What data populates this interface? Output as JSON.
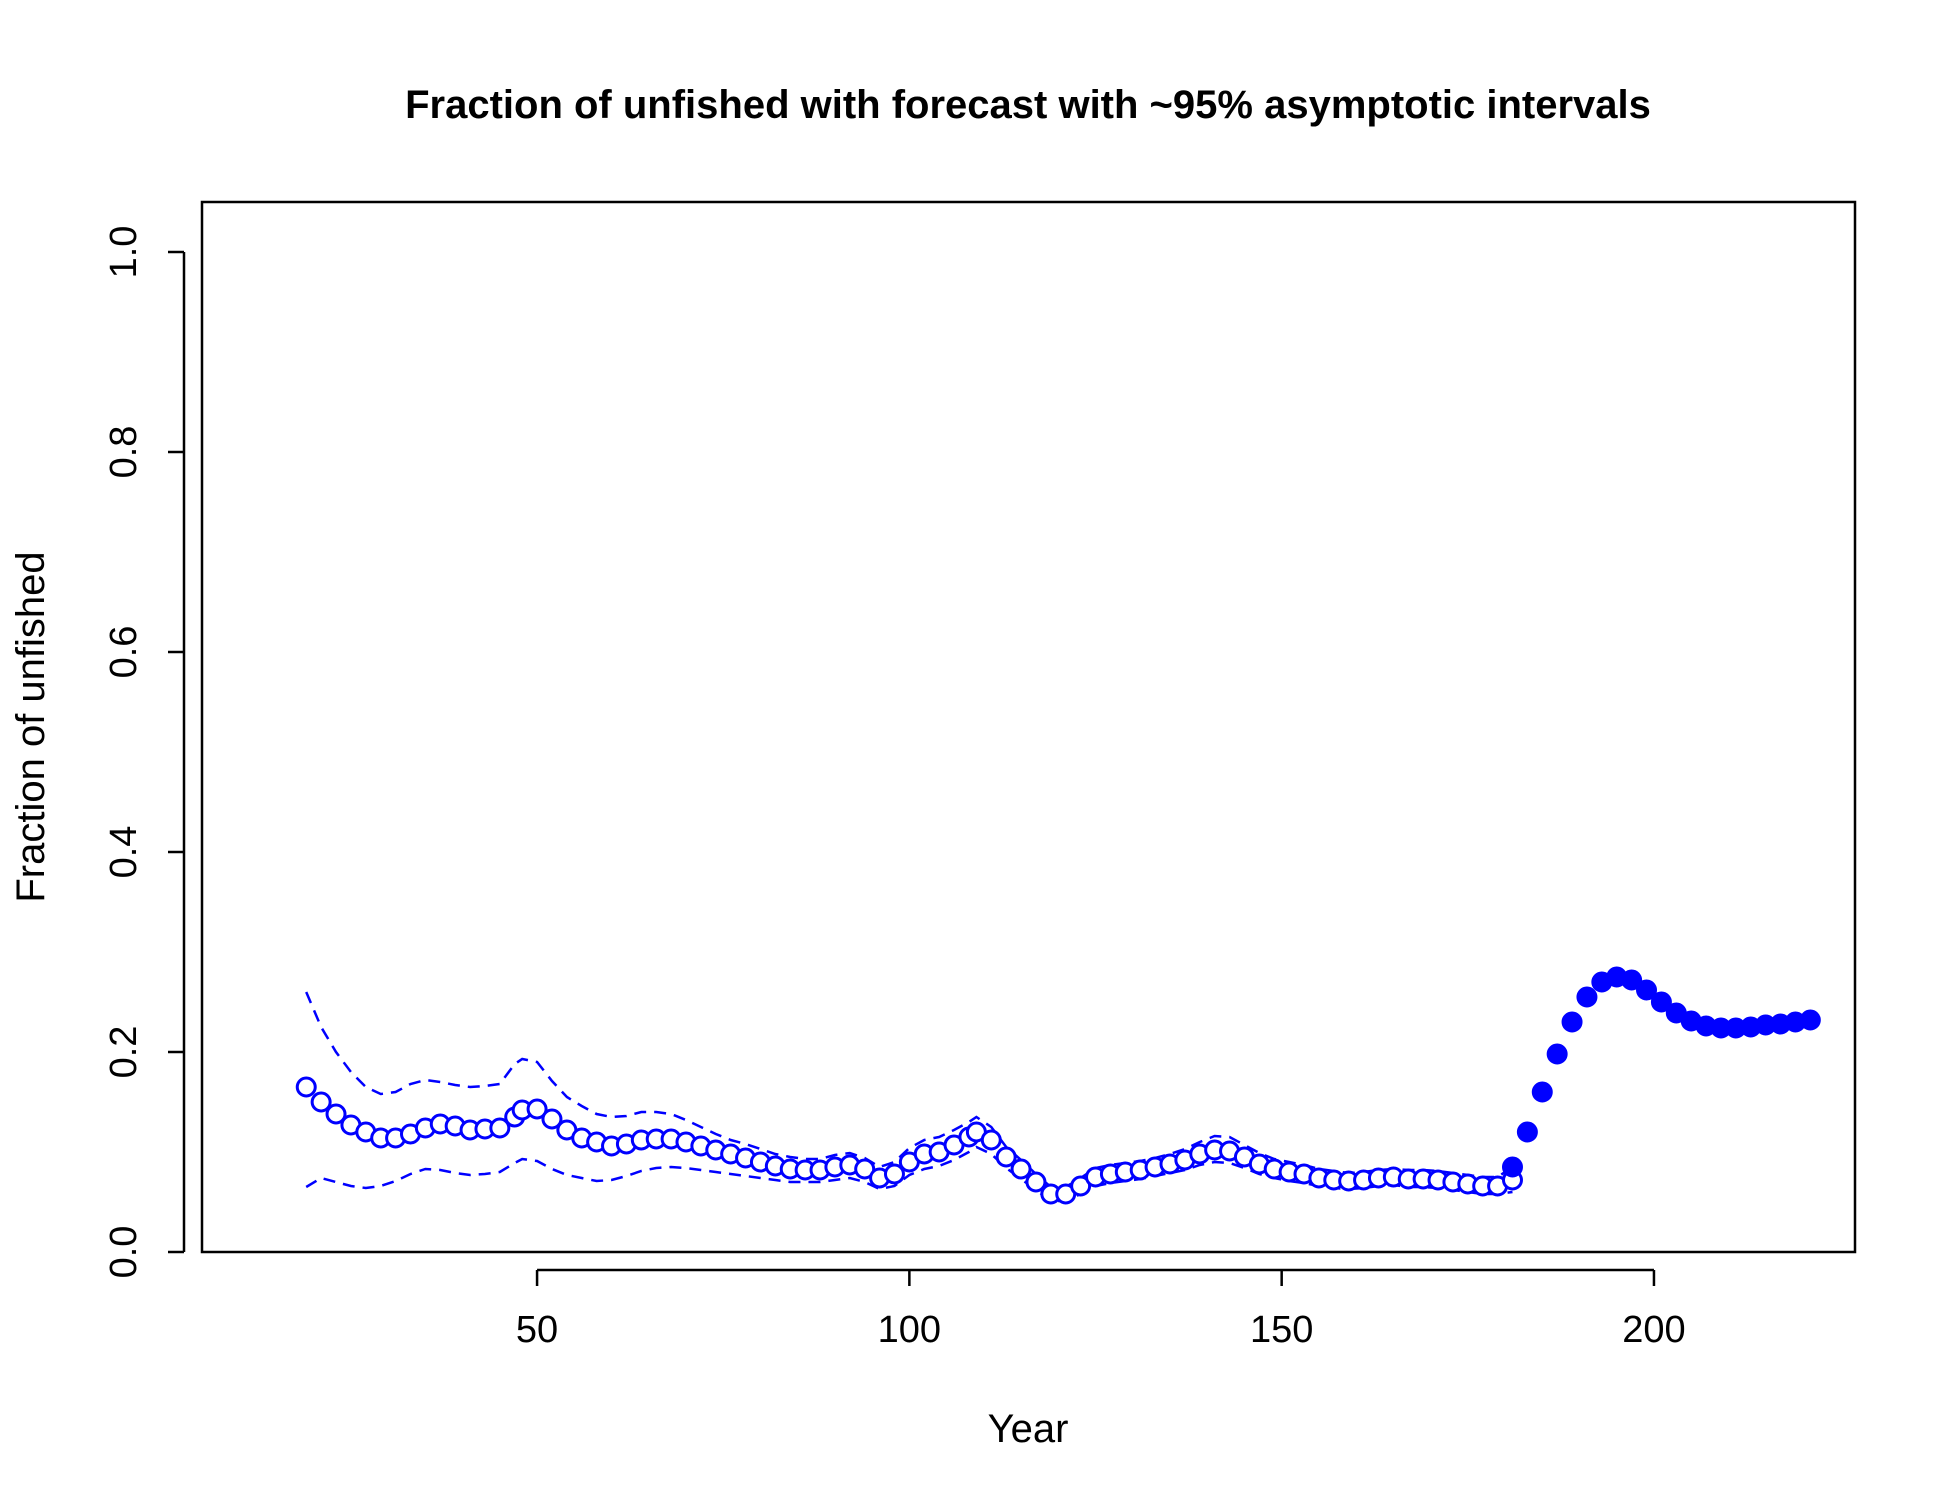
{
  "chart_data": {
    "type": "scatter",
    "title": "Fraction of unfished with forecast with ~95% asymptotic intervals",
    "xlabel": "Year",
    "ylabel": "Fraction of unfished",
    "xlim": [
      5,
      227
    ],
    "ylim": [
      0,
      1.05
    ],
    "x_ticks": [
      "50",
      "100",
      "150",
      "200"
    ],
    "y_ticks": [
      "0.0",
      "0.2",
      "0.4",
      "0.6",
      "0.8",
      "1.0"
    ],
    "color": "#0000ff",
    "series": [
      {
        "kind": "estimate",
        "marker": "open-circle",
        "x": [
          19,
          21,
          23,
          25,
          27,
          29,
          31,
          33,
          35,
          37,
          39,
          41,
          43,
          45,
          47,
          48,
          50,
          52,
          54,
          56,
          58,
          60,
          62,
          64,
          66,
          68,
          70,
          72,
          74,
          76,
          78,
          80,
          82,
          84,
          86,
          88,
          90,
          92,
          94,
          96,
          98,
          100,
          102,
          104,
          106,
          108,
          109,
          111,
          113,
          115,
          117,
          119,
          121,
          123,
          125,
          127,
          129,
          131,
          133,
          135,
          137,
          139,
          141,
          143,
          145,
          147,
          149,
          151,
          153,
          155,
          157,
          159,
          161,
          163,
          165,
          167,
          169,
          171,
          173,
          175,
          177,
          179,
          181
        ],
        "y": [
          0.165,
          0.15,
          0.138,
          0.127,
          0.12,
          0.114,
          0.114,
          0.118,
          0.124,
          0.128,
          0.126,
          0.122,
          0.123,
          0.124,
          0.135,
          0.142,
          0.143,
          0.133,
          0.122,
          0.114,
          0.11,
          0.106,
          0.108,
          0.112,
          0.113,
          0.113,
          0.11,
          0.106,
          0.102,
          0.098,
          0.094,
          0.09,
          0.086,
          0.083,
          0.082,
          0.082,
          0.085,
          0.087,
          0.083,
          0.074,
          0.078,
          0.09,
          0.098,
          0.1,
          0.107,
          0.115,
          0.12,
          0.112,
          0.095,
          0.083,
          0.07,
          0.058,
          0.058,
          0.066,
          0.075,
          0.078,
          0.08,
          0.082,
          0.085,
          0.088,
          0.092,
          0.098,
          0.102,
          0.101,
          0.095,
          0.088,
          0.083,
          0.08,
          0.078,
          0.074,
          0.072,
          0.071,
          0.072,
          0.074,
          0.075,
          0.073,
          0.073,
          0.072,
          0.07,
          0.068,
          0.066,
          0.066,
          0.072
        ]
      },
      {
        "kind": "forecast",
        "marker": "filled-circle",
        "x": [
          181,
          183,
          185,
          187,
          189,
          191,
          193,
          195,
          197,
          199,
          201,
          203,
          205,
          207,
          209,
          211,
          213,
          215,
          217,
          219,
          221
        ],
        "y": [
          0.085,
          0.12,
          0.16,
          0.198,
          0.23,
          0.255,
          0.27,
          0.275,
          0.272,
          0.262,
          0.25,
          0.239,
          0.231,
          0.226,
          0.224,
          0.224,
          0.225,
          0.227,
          0.228,
          0.23,
          0.232
        ]
      },
      {
        "kind": "upper-95",
        "line": "dashed",
        "x": [
          19,
          21,
          23,
          25,
          27,
          29,
          31,
          33,
          35,
          37,
          39,
          41,
          43,
          45,
          47,
          48,
          50,
          52,
          54,
          56,
          58,
          60,
          62,
          64,
          66,
          68,
          70,
          72,
          74,
          76,
          78,
          80,
          82,
          84,
          86,
          88,
          90,
          92,
          94,
          96,
          98,
          100,
          102,
          104,
          106,
          108,
          109,
          111,
          113,
          115,
          117,
          119,
          121,
          123,
          125,
          127,
          129,
          131,
          133,
          135,
          137,
          139,
          141,
          143,
          145,
          147,
          149,
          151,
          153,
          155,
          157,
          159,
          161,
          163,
          165,
          167,
          169,
          171,
          173,
          175,
          177,
          179,
          181
        ],
        "y": [
          0.26,
          0.225,
          0.2,
          0.18,
          0.165,
          0.158,
          0.16,
          0.168,
          0.172,
          0.17,
          0.167,
          0.165,
          0.166,
          0.168,
          0.188,
          0.193,
          0.19,
          0.171,
          0.155,
          0.146,
          0.138,
          0.135,
          0.136,
          0.14,
          0.14,
          0.138,
          0.132,
          0.125,
          0.118,
          0.112,
          0.108,
          0.103,
          0.098,
          0.095,
          0.093,
          0.093,
          0.097,
          0.099,
          0.094,
          0.085,
          0.09,
          0.104,
          0.112,
          0.115,
          0.122,
          0.13,
          0.135,
          0.125,
          0.105,
          0.092,
          0.078,
          0.065,
          0.065,
          0.074,
          0.084,
          0.087,
          0.089,
          0.091,
          0.094,
          0.098,
          0.103,
          0.11,
          0.116,
          0.115,
          0.107,
          0.099,
          0.093,
          0.09,
          0.087,
          0.083,
          0.081,
          0.079,
          0.08,
          0.082,
          0.083,
          0.082,
          0.082,
          0.081,
          0.079,
          0.077,
          0.075,
          0.075,
          0.085
        ]
      },
      {
        "kind": "lower-95",
        "line": "dashed",
        "x": [
          19,
          21,
          23,
          25,
          27,
          29,
          31,
          33,
          35,
          37,
          39,
          41,
          43,
          45,
          47,
          48,
          50,
          52,
          54,
          56,
          58,
          60,
          62,
          64,
          66,
          68,
          70,
          72,
          74,
          76,
          78,
          80,
          82,
          84,
          86,
          88,
          90,
          92,
          94,
          96,
          98,
          100,
          102,
          104,
          106,
          108,
          109,
          111,
          113,
          115,
          117,
          119,
          121,
          123,
          125,
          127,
          129,
          131,
          133,
          135,
          137,
          139,
          141,
          143,
          145,
          147,
          149,
          151,
          153,
          155,
          157,
          159,
          161,
          163,
          165,
          167,
          169,
          171,
          173,
          175,
          177,
          179,
          181
        ],
        "y": [
          0.065,
          0.074,
          0.07,
          0.066,
          0.064,
          0.066,
          0.071,
          0.078,
          0.083,
          0.082,
          0.079,
          0.077,
          0.078,
          0.08,
          0.089,
          0.093,
          0.091,
          0.083,
          0.077,
          0.074,
          0.071,
          0.072,
          0.076,
          0.081,
          0.084,
          0.085,
          0.084,
          0.082,
          0.08,
          0.078,
          0.076,
          0.074,
          0.072,
          0.07,
          0.07,
          0.07,
          0.072,
          0.074,
          0.07,
          0.063,
          0.066,
          0.077,
          0.083,
          0.086,
          0.092,
          0.1,
          0.105,
          0.098,
          0.084,
          0.073,
          0.062,
          0.051,
          0.051,
          0.058,
          0.066,
          0.069,
          0.071,
          0.073,
          0.076,
          0.079,
          0.082,
          0.087,
          0.09,
          0.089,
          0.084,
          0.078,
          0.074,
          0.071,
          0.069,
          0.066,
          0.064,
          0.063,
          0.064,
          0.066,
          0.067,
          0.065,
          0.065,
          0.064,
          0.062,
          0.06,
          0.058,
          0.058,
          0.06
        ]
      }
    ]
  }
}
